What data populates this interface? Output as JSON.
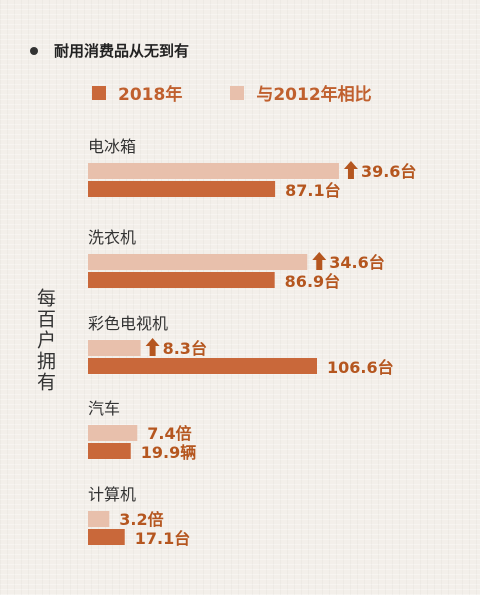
{
  "title": "耐用消费品从无到有",
  "side_label": "每百户拥有",
  "legend": [
    {
      "label": "2018年",
      "color": "#c9683a"
    },
    {
      "label": "与2012年相比",
      "color": "#e8c0ac"
    }
  ],
  "chart_data": {
    "type": "bar",
    "categories": [
      "电冰箱",
      "洗衣机",
      "彩色电视机",
      "汽车",
      "计算机"
    ],
    "series": [
      {
        "name": "与2012年相比",
        "values": [
          39.6,
          34.6,
          8.3,
          7.4,
          3.2
        ],
        "labels": [
          "39.6台",
          "34.6台",
          "8.3台",
          "7.4倍",
          "3.2倍"
        ],
        "arrow": [
          true,
          true,
          true,
          false,
          false
        ],
        "color": "#e8c0ac"
      },
      {
        "name": "2018年",
        "values": [
          87.1,
          86.9,
          106.6,
          19.9,
          17.1
        ],
        "labels": [
          "87.1台",
          "86.9台",
          "106.6台",
          "19.9辆",
          "17.1台"
        ],
        "color": "#c9683a"
      }
    ],
    "xlim": [
      0,
      106.6
    ]
  }
}
